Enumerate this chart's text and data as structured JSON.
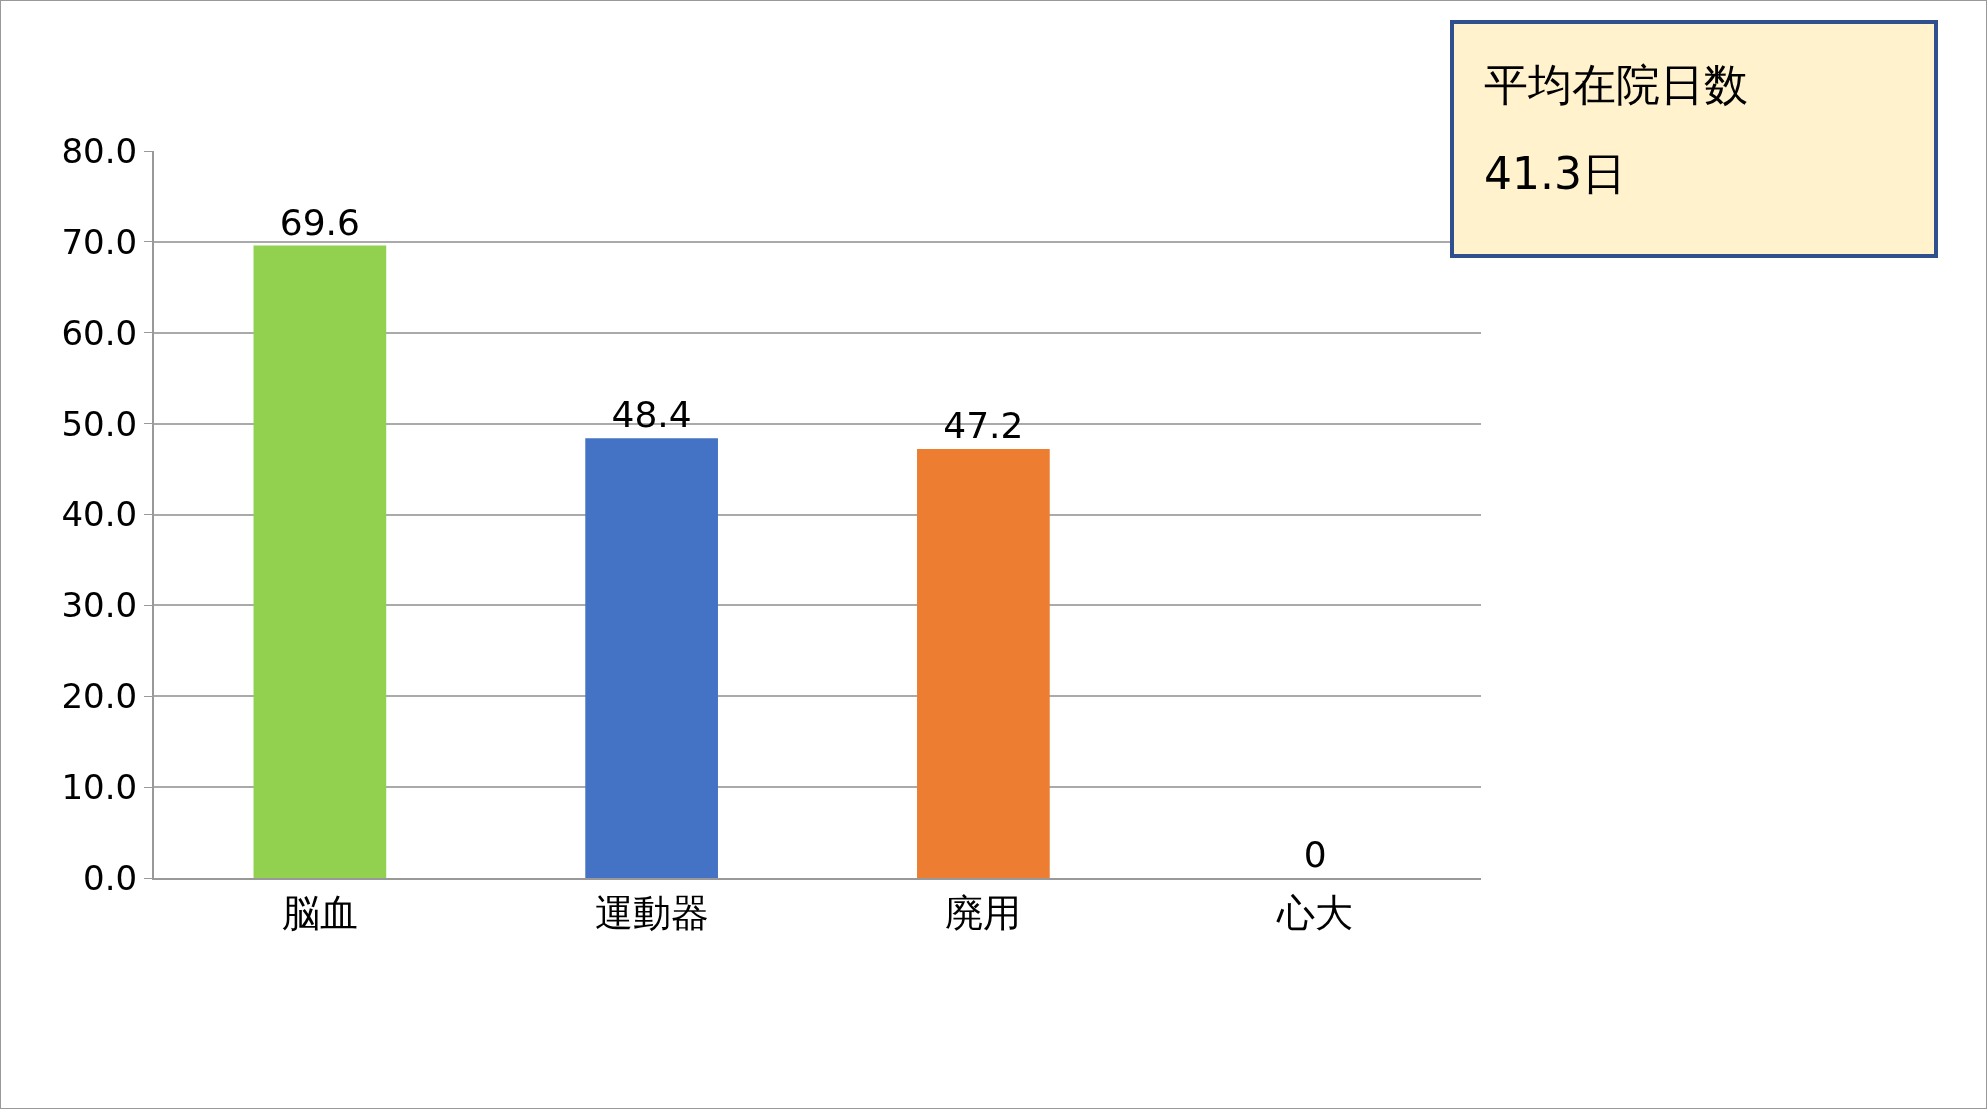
{
  "chart_data": {
    "type": "bar",
    "categories": [
      "脳血",
      "運動器",
      "廃用",
      "心大"
    ],
    "values": [
      69.6,
      48.4,
      47.2,
      0
    ],
    "colors": [
      "#92d050",
      "#4472c4",
      "#ed7d31",
      "#a5a5a5"
    ],
    "value_labels": [
      "69.6",
      "48.4",
      "47.2",
      "0"
    ],
    "ylim": [
      0,
      80
    ],
    "yticks": [
      {
        "value": 0,
        "label": "0.0"
      },
      {
        "value": 10,
        "label": "10.0"
      },
      {
        "value": 20,
        "label": "20.0"
      },
      {
        "value": 30,
        "label": "30.0"
      },
      {
        "value": 40,
        "label": "40.0"
      },
      {
        "value": 50,
        "label": "50.0"
      },
      {
        "value": 60,
        "label": "60.0"
      },
      {
        "value": 70,
        "label": "70.0"
      },
      {
        "value": 80,
        "label": "80.0"
      }
    ],
    "grid": "y",
    "annotations": [
      "平均在院日数",
      "41.3日"
    ]
  }
}
